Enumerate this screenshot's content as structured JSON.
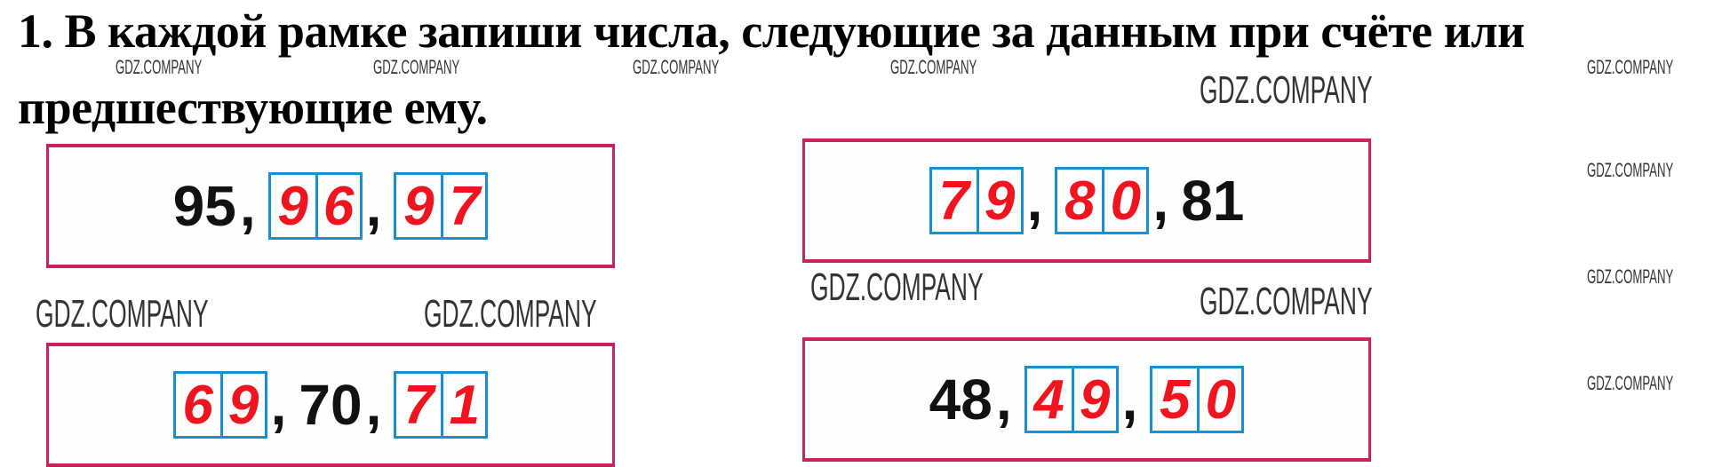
{
  "task": {
    "line1": "1. В каждой рамке запиши числа, следующие за данным при счёте или",
    "line2": "предшествующие ему."
  },
  "frames": [
    {
      "items": [
        {
          "type": "given",
          "value": "95"
        },
        {
          "type": "answer",
          "digits": [
            "9",
            "6"
          ]
        },
        {
          "type": "answer",
          "digits": [
            "9",
            "7"
          ]
        }
      ]
    },
    {
      "items": [
        {
          "type": "answer",
          "digits": [
            "7",
            "9"
          ]
        },
        {
          "type": "answer",
          "digits": [
            "8",
            "0"
          ]
        },
        {
          "type": "given",
          "value": "81"
        }
      ]
    },
    {
      "items": [
        {
          "type": "answer",
          "digits": [
            "6",
            "9"
          ]
        },
        {
          "type": "given",
          "value": "70"
        },
        {
          "type": "answer",
          "digits": [
            "7",
            "1"
          ]
        }
      ]
    },
    {
      "items": [
        {
          "type": "given",
          "value": "48"
        },
        {
          "type": "answer",
          "digits": [
            "4",
            "9"
          ]
        },
        {
          "type": "answer",
          "digits": [
            "5",
            "0"
          ]
        }
      ]
    }
  ],
  "separator": ",",
  "watermark": "GDZ.COMPANY",
  "colors": {
    "frame": "#c8245a",
    "answer_box": "#1b8fd0",
    "answer_digit": "#f0141e"
  }
}
